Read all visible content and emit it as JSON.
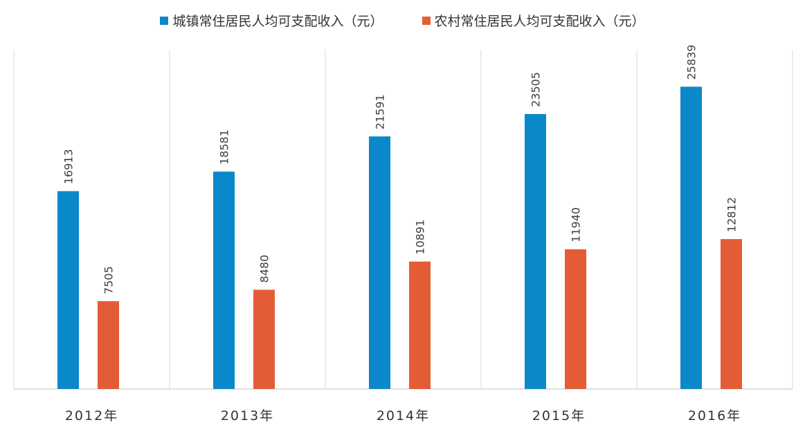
{
  "chart_data": {
    "type": "bar",
    "categories": [
      "2012年",
      "2013年",
      "2014年",
      "2015年",
      "2016年"
    ],
    "series": [
      {
        "name": "城镇常住居民人均可支配收入（元）",
        "color": "#0B88C9",
        "values": [
          16913,
          18581,
          21591,
          23505,
          25839
        ]
      },
      {
        "name": "农村常住居民人均可支配收入（元）",
        "color": "#E45C35",
        "values": [
          7505,
          8480,
          10891,
          11940,
          12812
        ]
      }
    ],
    "ylim": [
      0,
      29000
    ],
    "grid": "vertical separators",
    "legend": "top-center",
    "data_labels": "rotated vertical above bars"
  }
}
